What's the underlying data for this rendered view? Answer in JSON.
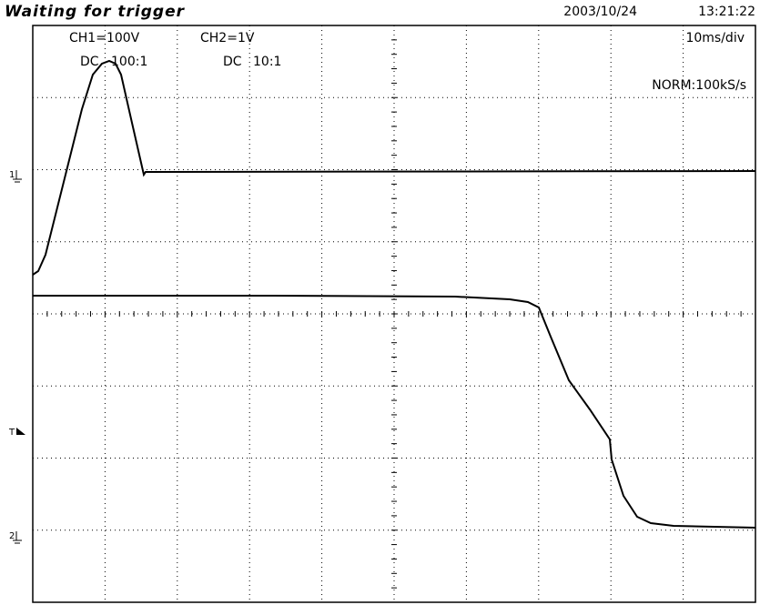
{
  "status": "Waiting for trigger",
  "datetime": {
    "date": "2003/10/24",
    "time": "13:21:22"
  },
  "channels": [
    {
      "label": "CH1=100V",
      "coupling": "DC",
      "probe": "100:1",
      "marker": "1"
    },
    {
      "label": "CH2=1V",
      "coupling": "DC",
      "probe": "10:1",
      "marker": "2"
    }
  ],
  "timebase": "10ms/div",
  "acquisition": "NORM:100kS/s",
  "trigger_marker": "T"
}
